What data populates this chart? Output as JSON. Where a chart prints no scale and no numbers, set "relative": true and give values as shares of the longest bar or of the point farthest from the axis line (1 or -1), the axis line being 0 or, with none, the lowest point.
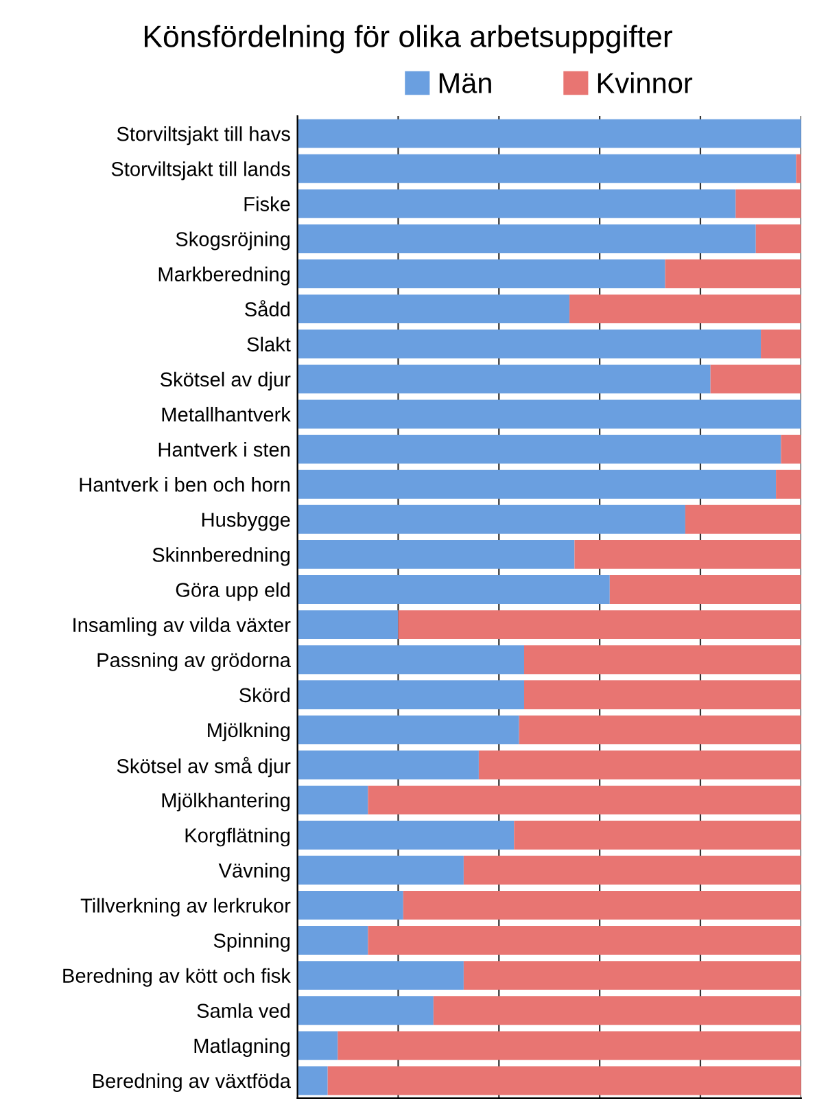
{
  "chart_data": {
    "type": "bar",
    "orientation": "horizontal",
    "stacked": true,
    "relative": true,
    "title": "Könsfördelning för olika arbetsuppgifter",
    "categories": [
      "Storviltsjakt till havs",
      "Storviltsjakt till lands",
      "Fiske",
      "Skogsröjning",
      "Markberedning",
      "Sådd",
      "Slakt",
      "Skötsel av djur",
      "Metallhantverk",
      "Hantverk i sten",
      "Hantverk i ben och horn",
      "Husbygge",
      "Skinnberedning",
      "Göra upp eld",
      "Insamling av vilda växter",
      "Passning av grödorna",
      "Skörd",
      "Mjölkning",
      "Skötsel av små djur",
      "Mjölkhantering",
      "Korgflätning",
      "Vävning",
      "Tillverkning av lerkrukor",
      "Spinning",
      "Beredning av kött och fisk",
      "Samla ved",
      "Matlagning",
      "Beredning av växtföda"
    ],
    "series": [
      {
        "name": "Män",
        "color": "#6a9fe0",
        "values": [
          1.0,
          0.99,
          0.87,
          0.91,
          0.73,
          0.54,
          0.92,
          0.82,
          1.0,
          0.96,
          0.95,
          0.77,
          0.55,
          0.62,
          0.2,
          0.45,
          0.45,
          0.44,
          0.36,
          0.14,
          0.43,
          0.33,
          0.21,
          0.14,
          0.33,
          0.27,
          0.08,
          0.06
        ]
      },
      {
        "name": "Kvinnor",
        "color": "#e87572",
        "values": [
          0.0,
          0.01,
          0.13,
          0.09,
          0.27,
          0.46,
          0.08,
          0.18,
          0.0,
          0.04,
          0.05,
          0.23,
          0.45,
          0.38,
          0.8,
          0.55,
          0.55,
          0.56,
          0.64,
          0.86,
          0.57,
          0.67,
          0.79,
          0.86,
          0.67,
          0.73,
          0.92,
          0.94
        ]
      }
    ],
    "grid": "x",
    "legend": "top"
  }
}
